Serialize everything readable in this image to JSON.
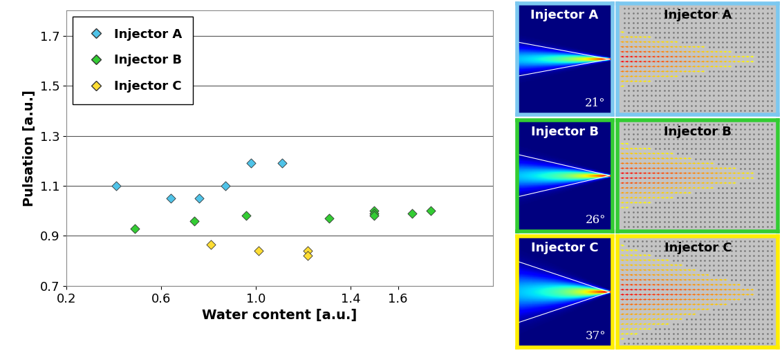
{
  "chart_data": {
    "type": "scatter",
    "x_label": "Water content [a.u.]",
    "y_label": "Pulsation [a.u.]",
    "xlim": [
      0.2,
      2.0
    ],
    "ylim": [
      0.7,
      1.8
    ],
    "xticks": [
      0.2,
      0.6,
      1.0,
      1.4,
      1.6
    ],
    "yticks": [
      0.7,
      0.9,
      1.1,
      1.3,
      1.5,
      1.7
    ],
    "grid": "y",
    "legend": "upper left",
    "series": [
      {
        "name": "Injector A",
        "color": "#4fc3e8",
        "marker": "diamond",
        "x": [
          0.41,
          0.64,
          0.76,
          0.87,
          0.98,
          1.11
        ],
        "values": [
          1.1,
          1.05,
          1.05,
          1.1,
          1.19,
          1.19
        ]
      },
      {
        "name": "Injector B",
        "color": "#33cc33",
        "marker": "diamond",
        "x": [
          0.49,
          0.74,
          0.96,
          1.31,
          1.5,
          1.5,
          1.5,
          1.66,
          1.74
        ],
        "values": [
          0.93,
          0.96,
          0.98,
          0.97,
          1.0,
          0.99,
          0.98,
          0.99,
          1.0
        ]
      },
      {
        "name": "Injector C",
        "color": "#ffdd33",
        "marker": "diamond",
        "x": [
          0.81,
          1.01,
          1.22,
          1.22
        ],
        "values": [
          0.865,
          0.84,
          0.84,
          0.82
        ]
      }
    ]
  },
  "panels": [
    {
      "label": "Injector A",
      "angle": 21,
      "angle_label": "21°",
      "color": "#7cc8f0"
    },
    {
      "label": "Injector B",
      "angle": 26,
      "angle_label": "26°",
      "color": "#33cc33"
    },
    {
      "label": "Injector C",
      "angle": 37,
      "angle_label": "37°",
      "color": "#ffee00"
    }
  ]
}
